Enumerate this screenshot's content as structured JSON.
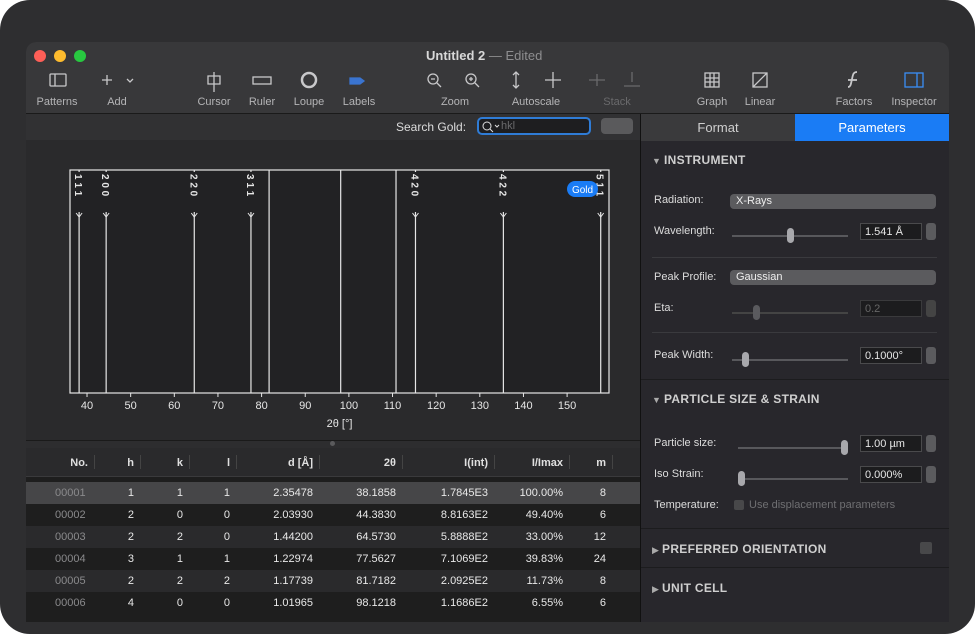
{
  "window": {
    "title": "Untitled 2",
    "subtitle": "— Edited"
  },
  "toolbar": [
    "Patterns",
    "Add",
    "Cursor",
    "Ruler",
    "Loupe",
    "Labels",
    "Zoom",
    "Autoscale",
    "Stack",
    "Graph",
    "Linear",
    "Factors",
    "Inspector"
  ],
  "search": {
    "label": "Search Gold:",
    "placeholder": "hkl"
  },
  "chart_data": {
    "type": "peaks",
    "badge": "Gold",
    "x_label": "2θ [°]",
    "xlim": [
      36.1,
      159.6
    ],
    "xticks": [
      40,
      50,
      60,
      70,
      80,
      90,
      100,
      110,
      120,
      130,
      140,
      150
    ],
    "x": [
      38.1858,
      44.383,
      64.573,
      77.5627,
      81.7182,
      98.1218,
      110.8,
      115.26,
      135.4,
      157.7
    ],
    "labels": [
      "1 1 1",
      "2 0 0",
      "2 2 0",
      "3 1 1",
      null,
      null,
      null,
      "4 2 0",
      "4 2 2",
      "5 1 1"
    ],
    "color": "#e6e6e6"
  },
  "table": {
    "columns": [
      "No.",
      "h",
      "k",
      "l",
      "d [Å]",
      "2θ",
      "I(int)",
      "I/Imax",
      "m"
    ],
    "rows": [
      [
        "00001",
        "1",
        "1",
        "1",
        "2.35478",
        "38.1858",
        "1.7845E3",
        "100.00%",
        "8"
      ],
      [
        "00002",
        "2",
        "0",
        "0",
        "2.03930",
        "44.3830",
        "8.8163E2",
        "49.40%",
        "6"
      ],
      [
        "00003",
        "2",
        "2",
        "0",
        "1.44200",
        "64.5730",
        "5.8888E2",
        "33.00%",
        "12"
      ],
      [
        "00004",
        "3",
        "1",
        "1",
        "1.22974",
        "77.5627",
        "7.1069E2",
        "39.83%",
        "24"
      ],
      [
        "00005",
        "2",
        "2",
        "2",
        "1.17739",
        "81.7182",
        "2.0925E2",
        "11.73%",
        "8"
      ],
      [
        "00006",
        "4",
        "0",
        "0",
        "1.01965",
        "98.1218",
        "1.1686E2",
        "6.55%",
        "6"
      ]
    ]
  },
  "inspector": {
    "tabs": [
      "Format",
      "Parameters"
    ],
    "instrument": {
      "title": "INSTRUMENT",
      "radiation_label": "Radiation:",
      "radiation": "X-Rays",
      "wavelength_label": "Wavelength:",
      "wavelength": "1.541 Å",
      "peak_profile_label": "Peak Profile:",
      "peak_profile": "Gaussian",
      "eta_label": "Eta:",
      "eta": "0.2",
      "peak_width_label": "Peak Width:",
      "peak_width": "0.1000°"
    },
    "particle": {
      "title": "PARTICLE SIZE & STRAIN",
      "size_label": "Particle size:",
      "size": "1.00 µm",
      "strain_label": "Iso Strain:",
      "strain": "0.000%",
      "temperature_label": "Temperature:",
      "temperature_option": "Use displacement parameters"
    },
    "collapsed": [
      "PREFERRED ORIENTATION",
      "UNIT CELL"
    ]
  }
}
